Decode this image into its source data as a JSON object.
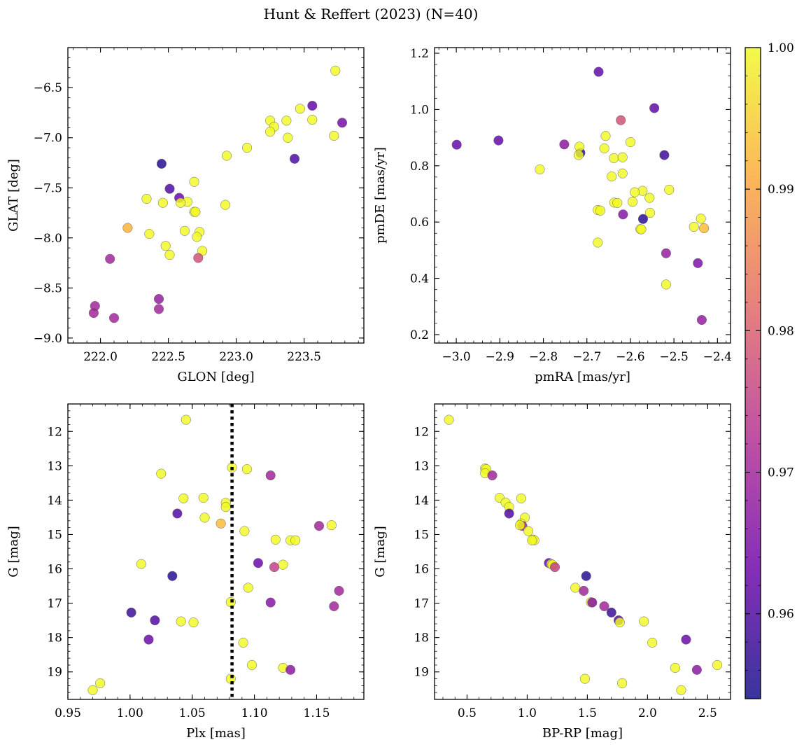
{
  "title": "Hunt & Reffert (2023) (N=40)",
  "colormap": {
    "name": "plasma",
    "min": 0.954,
    "max": 1.0,
    "ticks": [
      0.96,
      0.97,
      0.98,
      0.99,
      1.0
    ],
    "tick_labels": [
      "0.96",
      "0.97",
      "0.98",
      "0.99",
      "1.00"
    ],
    "colors": [
      "#0d0887",
      "#6a00a8",
      "#b12a90",
      "#e16462",
      "#fca636",
      "#f0f921"
    ]
  },
  "chart_data": [
    {
      "type": "scatter",
      "name": "panel-glon-glat",
      "xlabel": "GLON [deg]",
      "ylabel": "GLAT [deg]",
      "xlim": [
        221.76,
        223.94
      ],
      "ylim": [
        -9.05,
        -6.1
      ],
      "xticks": [
        222.0,
        222.5,
        223.0,
        223.5
      ],
      "xtick_labels": [
        "222.0",
        "222.5",
        "223.0",
        "223.5"
      ],
      "yticks": [
        -9.0,
        -8.5,
        -8.0,
        -7.5,
        -7.0,
        -6.5
      ],
      "ytick_labels": [
        "−9.0",
        "−8.5",
        "−8.0",
        "−7.5",
        "−7.0",
        "−6.5"
      ],
      "xminor": 0.1,
      "yminor": 0.1,
      "reverse_y": false,
      "points": [
        {
          "x": 223.73,
          "y": -6.33,
          "c": 1.0
        },
        {
          "x": 223.56,
          "y": -6.68,
          "c": 0.962
        },
        {
          "x": 223.78,
          "y": -6.85,
          "c": 0.964
        },
        {
          "x": 223.47,
          "y": -6.71,
          "c": 1.0
        },
        {
          "x": 223.56,
          "y": -6.82,
          "c": 1.0
        },
        {
          "x": 223.72,
          "y": -6.98,
          "c": 1.0
        },
        {
          "x": 223.25,
          "y": -6.83,
          "c": 1.0
        },
        {
          "x": 223.28,
          "y": -6.89,
          "c": 1.0
        },
        {
          "x": 223.37,
          "y": -6.83,
          "c": 1.0
        },
        {
          "x": 223.25,
          "y": -6.94,
          "c": 1.0
        },
        {
          "x": 223.38,
          "y": -7.0,
          "c": 1.0
        },
        {
          "x": 223.43,
          "y": -7.21,
          "c": 0.96
        },
        {
          "x": 223.08,
          "y": -7.1,
          "c": 1.0
        },
        {
          "x": 222.93,
          "y": -7.18,
          "c": 1.0
        },
        {
          "x": 222.45,
          "y": -7.26,
          "c": 0.956
        },
        {
          "x": 222.69,
          "y": -7.44,
          "c": 1.0
        },
        {
          "x": 222.51,
          "y": -7.51,
          "c": 0.96
        },
        {
          "x": 222.58,
          "y": -7.6,
          "c": 0.963
        },
        {
          "x": 222.34,
          "y": -7.61,
          "c": 1.0
        },
        {
          "x": 222.46,
          "y": -7.65,
          "c": 1.0
        },
        {
          "x": 222.64,
          "y": -7.64,
          "c": 1.0
        },
        {
          "x": 222.59,
          "y": -7.65,
          "c": 1.0
        },
        {
          "x": 222.92,
          "y": -7.67,
          "c": 1.0
        },
        {
          "x": 222.69,
          "y": -7.74,
          "c": 1.0
        },
        {
          "x": 222.7,
          "y": -7.74,
          "c": 1.0
        },
        {
          "x": 222.2,
          "y": -7.9,
          "c": 0.992
        },
        {
          "x": 222.36,
          "y": -7.96,
          "c": 1.0
        },
        {
          "x": 222.62,
          "y": -7.93,
          "c": 1.0
        },
        {
          "x": 222.73,
          "y": -7.94,
          "c": 1.0
        },
        {
          "x": 222.71,
          "y": -7.99,
          "c": 1.0
        },
        {
          "x": 222.48,
          "y": -8.08,
          "c": 1.0
        },
        {
          "x": 222.75,
          "y": -8.13,
          "c": 1.0
        },
        {
          "x": 222.51,
          "y": -8.17,
          "c": 1.0
        },
        {
          "x": 222.72,
          "y": -8.2,
          "c": 0.978
        },
        {
          "x": 222.07,
          "y": -8.21,
          "c": 0.97
        },
        {
          "x": 222.43,
          "y": -8.61,
          "c": 0.968
        },
        {
          "x": 221.96,
          "y": -8.68,
          "c": 0.97
        },
        {
          "x": 222.43,
          "y": -8.71,
          "c": 0.97
        },
        {
          "x": 221.95,
          "y": -8.75,
          "c": 0.97
        },
        {
          "x": 222.1,
          "y": -8.8,
          "c": 0.97
        }
      ]
    },
    {
      "type": "scatter",
      "name": "panel-pmra-pmde",
      "xlabel": "pmRA [mas/yr]",
      "ylabel": "pmDE [mas/yr]",
      "xlim": [
        -3.05,
        -2.37
      ],
      "ylim": [
        0.17,
        1.22
      ],
      "xticks": [
        -3.0,
        -2.9,
        -2.8,
        -2.7,
        -2.6,
        -2.5,
        -2.4
      ],
      "xtick_labels": [
        "−3.0",
        "−2.9",
        "−2.8",
        "−2.7",
        "−2.6",
        "−2.5",
        "−2.4"
      ],
      "yticks": [
        0.2,
        0.4,
        0.6,
        0.8,
        1.0,
        1.2
      ],
      "ytick_labels": [
        "0.2",
        "0.4",
        "0.6",
        "0.8",
        "1.0",
        "1.2"
      ],
      "xminor": 0.02,
      "yminor": 0.04,
      "reverse_y": false,
      "points": [
        {
          "x": -2.673,
          "y": 1.134,
          "c": 0.962
        },
        {
          "x": -2.545,
          "y": 1.005,
          "c": 0.962
        },
        {
          "x": -2.622,
          "y": 0.962,
          "c": 0.978
        },
        {
          "x": -2.999,
          "y": 0.875,
          "c": 0.962
        },
        {
          "x": -2.903,
          "y": 0.89,
          "c": 0.962
        },
        {
          "x": -2.752,
          "y": 0.876,
          "c": 0.967
        },
        {
          "x": -2.715,
          "y": 0.846,
          "c": 0.956
        },
        {
          "x": -2.522,
          "y": 0.838,
          "c": 0.958
        },
        {
          "x": -2.657,
          "y": 0.906,
          "c": 1.0
        },
        {
          "x": -2.6,
          "y": 0.884,
          "c": 1.0
        },
        {
          "x": -2.717,
          "y": 0.868,
          "c": 1.0
        },
        {
          "x": -2.66,
          "y": 0.862,
          "c": 1.0
        },
        {
          "x": -2.719,
          "y": 0.838,
          "c": 1.0
        },
        {
          "x": -2.638,
          "y": 0.827,
          "c": 1.0
        },
        {
          "x": -2.618,
          "y": 0.83,
          "c": 1.0
        },
        {
          "x": -2.808,
          "y": 0.787,
          "c": 1.0
        },
        {
          "x": -2.618,
          "y": 0.773,
          "c": 1.0
        },
        {
          "x": -2.643,
          "y": 0.762,
          "c": 1.0
        },
        {
          "x": -2.511,
          "y": 0.715,
          "c": 1.0
        },
        {
          "x": -2.572,
          "y": 0.711,
          "c": 1.0
        },
        {
          "x": -2.59,
          "y": 0.706,
          "c": 1.0
        },
        {
          "x": -2.556,
          "y": 0.686,
          "c": 1.0
        },
        {
          "x": -2.595,
          "y": 0.672,
          "c": 1.0
        },
        {
          "x": -2.637,
          "y": 0.669,
          "c": 1.0
        },
        {
          "x": -2.63,
          "y": 0.668,
          "c": 1.0
        },
        {
          "x": -2.675,
          "y": 0.643,
          "c": 1.0
        },
        {
          "x": -2.669,
          "y": 0.641,
          "c": 1.0
        },
        {
          "x": -2.555,
          "y": 0.633,
          "c": 1.0
        },
        {
          "x": -2.617,
          "y": 0.627,
          "c": 0.966
        },
        {
          "x": -2.438,
          "y": 0.612,
          "c": 1.0
        },
        {
          "x": -2.571,
          "y": 0.611,
          "c": 0.956
        },
        {
          "x": -2.454,
          "y": 0.583,
          "c": 1.0
        },
        {
          "x": -2.431,
          "y": 0.578,
          "c": 0.993
        },
        {
          "x": -2.577,
          "y": 0.575,
          "c": 1.0
        },
        {
          "x": -2.675,
          "y": 0.527,
          "c": 1.0
        },
        {
          "x": -2.518,
          "y": 0.489,
          "c": 0.968
        },
        {
          "x": -2.445,
          "y": 0.454,
          "c": 0.965
        },
        {
          "x": -2.518,
          "y": 0.378,
          "c": 1.0
        },
        {
          "x": -2.436,
          "y": 0.252,
          "c": 0.968
        },
        {
          "x": -2.575,
          "y": 0.574,
          "c": 1.0
        }
      ]
    },
    {
      "type": "scatter",
      "name": "panel-plx-g",
      "xlabel": "Plx [mas]",
      "ylabel": "G [mag]",
      "xlim": [
        0.95,
        1.188
      ],
      "ylim": [
        11.2,
        19.8
      ],
      "xticks": [
        0.95,
        1.0,
        1.05,
        1.1,
        1.15
      ],
      "xtick_labels": [
        "0.95",
        "1.00",
        "1.05",
        "1.10",
        "1.15"
      ],
      "yticks": [
        12,
        13,
        14,
        15,
        16,
        17,
        18,
        19
      ],
      "ytick_labels": [
        "12",
        "13",
        "14",
        "15",
        "16",
        "17",
        "18",
        "19"
      ],
      "xminor": 0.01,
      "yminor": 0.2,
      "reverse_y": true,
      "vline": {
        "x": 1.082,
        "style": "dotted"
      },
      "points": [
        {
          "x": 1.045,
          "y": 11.66,
          "c": 1.0
        },
        {
          "x": 1.082,
          "y": 13.05,
          "c": 1.0
        },
        {
          "x": 1.094,
          "y": 13.1,
          "c": 1.0
        },
        {
          "x": 1.025,
          "y": 13.23,
          "c": 1.0
        },
        {
          "x": 1.113,
          "y": 13.28,
          "c": 0.97
        },
        {
          "x": 1.043,
          "y": 13.95,
          "c": 1.0
        },
        {
          "x": 1.059,
          "y": 13.93,
          "c": 1.0
        },
        {
          "x": 1.077,
          "y": 14.08,
          "c": 1.0
        },
        {
          "x": 1.077,
          "y": 14.2,
          "c": 1.0
        },
        {
          "x": 1.038,
          "y": 14.39,
          "c": 0.96
        },
        {
          "x": 1.06,
          "y": 14.51,
          "c": 1.0
        },
        {
          "x": 1.073,
          "y": 14.68,
          "c": 0.993
        },
        {
          "x": 1.152,
          "y": 14.75,
          "c": 0.97
        },
        {
          "x": 1.162,
          "y": 14.73,
          "c": 1.0
        },
        {
          "x": 1.092,
          "y": 14.9,
          "c": 1.0
        },
        {
          "x": 1.117,
          "y": 15.15,
          "c": 1.0
        },
        {
          "x": 1.129,
          "y": 15.17,
          "c": 1.0
        },
        {
          "x": 1.133,
          "y": 15.17,
          "c": 1.0
        },
        {
          "x": 1.009,
          "y": 15.86,
          "c": 1.0
        },
        {
          "x": 1.103,
          "y": 15.83,
          "c": 0.963
        },
        {
          "x": 1.123,
          "y": 15.88,
          "c": 1.0
        },
        {
          "x": 1.116,
          "y": 15.95,
          "c": 0.975
        },
        {
          "x": 1.034,
          "y": 16.21,
          "c": 0.956
        },
        {
          "x": 1.095,
          "y": 16.55,
          "c": 1.0
        },
        {
          "x": 1.168,
          "y": 16.64,
          "c": 0.97
        },
        {
          "x": 1.081,
          "y": 16.97,
          "c": 1.0
        },
        {
          "x": 1.113,
          "y": 16.98,
          "c": 0.966
        },
        {
          "x": 1.164,
          "y": 17.09,
          "c": 0.97
        },
        {
          "x": 1.001,
          "y": 17.27,
          "c": 0.958
        },
        {
          "x": 1.02,
          "y": 17.5,
          "c": 0.96
        },
        {
          "x": 1.041,
          "y": 17.53,
          "c": 1.0
        },
        {
          "x": 1.051,
          "y": 17.56,
          "c": 1.0
        },
        {
          "x": 1.015,
          "y": 18.06,
          "c": 0.963
        },
        {
          "x": 1.091,
          "y": 18.15,
          "c": 1.0
        },
        {
          "x": 1.098,
          "y": 18.8,
          "c": 1.0
        },
        {
          "x": 1.123,
          "y": 18.88,
          "c": 1.0
        },
        {
          "x": 1.129,
          "y": 18.94,
          "c": 0.967
        },
        {
          "x": 1.081,
          "y": 19.2,
          "c": 1.0
        },
        {
          "x": 0.976,
          "y": 19.33,
          "c": 1.0
        },
        {
          "x": 0.97,
          "y": 19.53,
          "c": 1.0
        }
      ]
    },
    {
      "type": "scatter",
      "name": "panel-bprp-g",
      "xlabel": "BP-RP [mag]",
      "ylabel": "G [mag]",
      "xlim": [
        0.23,
        2.69
      ],
      "ylim": [
        11.2,
        19.8
      ],
      "xticks": [
        0.5,
        1.0,
        1.5,
        2.0,
        2.5
      ],
      "xtick_labels": [
        "0.5",
        "1.0",
        "1.5",
        "2.0",
        "2.5"
      ],
      "yticks": [
        12,
        13,
        14,
        15,
        16,
        17,
        18,
        19
      ],
      "ytick_labels": [
        "12",
        "13",
        "14",
        "15",
        "16",
        "17",
        "18",
        "19"
      ],
      "xminor": 0.1,
      "yminor": 0.2,
      "reverse_y": true,
      "points": [
        {
          "x": 0.35,
          "y": 11.66,
          "c": 1.0
        },
        {
          "x": 0.65,
          "y": 13.08,
          "c": 1.0
        },
        {
          "x": 0.66,
          "y": 13.1,
          "c": 1.0
        },
        {
          "x": 0.65,
          "y": 13.22,
          "c": 1.0
        },
        {
          "x": 0.71,
          "y": 13.28,
          "c": 0.97
        },
        {
          "x": 0.77,
          "y": 13.93,
          "c": 1.0
        },
        {
          "x": 0.82,
          "y": 14.07,
          "c": 1.0
        },
        {
          "x": 0.85,
          "y": 14.2,
          "c": 1.0
        },
        {
          "x": 0.95,
          "y": 13.95,
          "c": 1.0
        },
        {
          "x": 0.85,
          "y": 14.39,
          "c": 0.96
        },
        {
          "x": 0.98,
          "y": 14.51,
          "c": 1.0
        },
        {
          "x": 0.95,
          "y": 14.68,
          "c": 1.0
        },
        {
          "x": 0.96,
          "y": 14.75,
          "c": 0.97
        },
        {
          "x": 0.94,
          "y": 14.73,
          "c": 1.0
        },
        {
          "x": 1.01,
          "y": 14.9,
          "c": 1.0
        },
        {
          "x": 1.05,
          "y": 15.15,
          "c": 1.0
        },
        {
          "x": 1.06,
          "y": 15.17,
          "c": 1.0
        },
        {
          "x": 1.04,
          "y": 15.17,
          "c": 1.0
        },
        {
          "x": 1.18,
          "y": 15.83,
          "c": 0.963
        },
        {
          "x": 1.2,
          "y": 15.86,
          "c": 1.0
        },
        {
          "x": 1.21,
          "y": 15.88,
          "c": 1.0
        },
        {
          "x": 1.23,
          "y": 15.95,
          "c": 0.975
        },
        {
          "x": 1.49,
          "y": 16.21,
          "c": 0.956
        },
        {
          "x": 1.4,
          "y": 16.55,
          "c": 1.0
        },
        {
          "x": 1.47,
          "y": 16.64,
          "c": 0.97
        },
        {
          "x": 1.53,
          "y": 16.97,
          "c": 1.0
        },
        {
          "x": 1.54,
          "y": 16.98,
          "c": 0.966
        },
        {
          "x": 1.64,
          "y": 17.09,
          "c": 0.97
        },
        {
          "x": 1.7,
          "y": 17.27,
          "c": 0.958
        },
        {
          "x": 1.76,
          "y": 17.5,
          "c": 0.96
        },
        {
          "x": 1.77,
          "y": 17.56,
          "c": 1.0
        },
        {
          "x": 1.97,
          "y": 17.53,
          "c": 1.0
        },
        {
          "x": 2.32,
          "y": 18.06,
          "c": 0.963
        },
        {
          "x": 2.04,
          "y": 18.15,
          "c": 1.0
        },
        {
          "x": 2.58,
          "y": 18.8,
          "c": 1.0
        },
        {
          "x": 2.23,
          "y": 18.88,
          "c": 1.0
        },
        {
          "x": 2.41,
          "y": 18.94,
          "c": 0.967
        },
        {
          "x": 1.48,
          "y": 19.2,
          "c": 1.0
        },
        {
          "x": 1.79,
          "y": 19.33,
          "c": 1.0
        },
        {
          "x": 2.28,
          "y": 19.53,
          "c": 1.0
        }
      ]
    }
  ]
}
